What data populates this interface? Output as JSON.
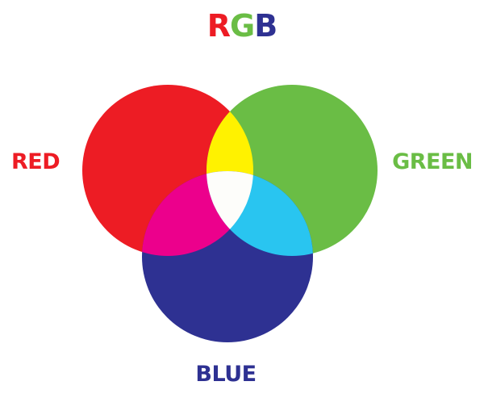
{
  "title": {
    "letters": [
      {
        "char": "R",
        "color": "#ed1c24"
      },
      {
        "char": "G",
        "color": "#6abd45"
      },
      {
        "char": "B",
        "color": "#2e3192"
      }
    ]
  },
  "labels": {
    "red": {
      "text": "RED",
      "color": "#ed1c24"
    },
    "green": {
      "text": "GREEN",
      "color": "#6abd45"
    },
    "blue": {
      "text": "BLUE",
      "color": "#2e3192"
    }
  },
  "colors": {
    "red": "#ed1c24",
    "green": "#6abd45",
    "blue": "#2e3192",
    "yellow": "#fff200",
    "magenta": "#ec008c",
    "cyan": "#29c5f0",
    "white": "#fdfdfa"
  }
}
